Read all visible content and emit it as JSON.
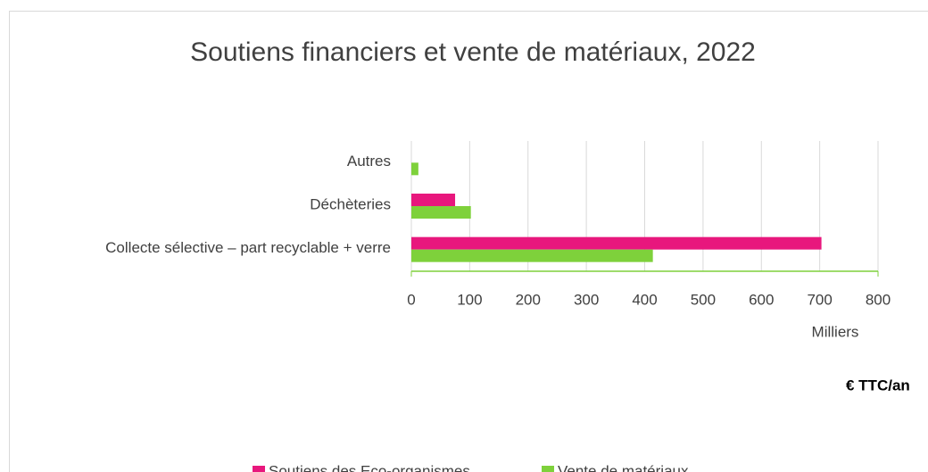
{
  "chart_data": {
    "type": "bar",
    "orientation": "horizontal",
    "title": "Soutiens financiers et vente de matériaux, 2022",
    "categories": [
      "Autres",
      "Déchèteries",
      "Collecte sélective – part recyclable + verre"
    ],
    "series": [
      {
        "name": "Soutiens des Eco-organismes",
        "color": "#e8177d",
        "values": [
          0,
          75,
          703
        ]
      },
      {
        "name": "Vente de matériaux",
        "color": "#7ed13b",
        "values": [
          12,
          102,
          414
        ]
      }
    ],
    "xlim": [
      0,
      800
    ],
    "xticks": [
      0,
      100,
      200,
      300,
      400,
      500,
      600,
      700,
      800
    ],
    "x_unit_label": "Milliers",
    "x_label": "€ TTC/an",
    "grid": true,
    "legend": "bottom"
  }
}
